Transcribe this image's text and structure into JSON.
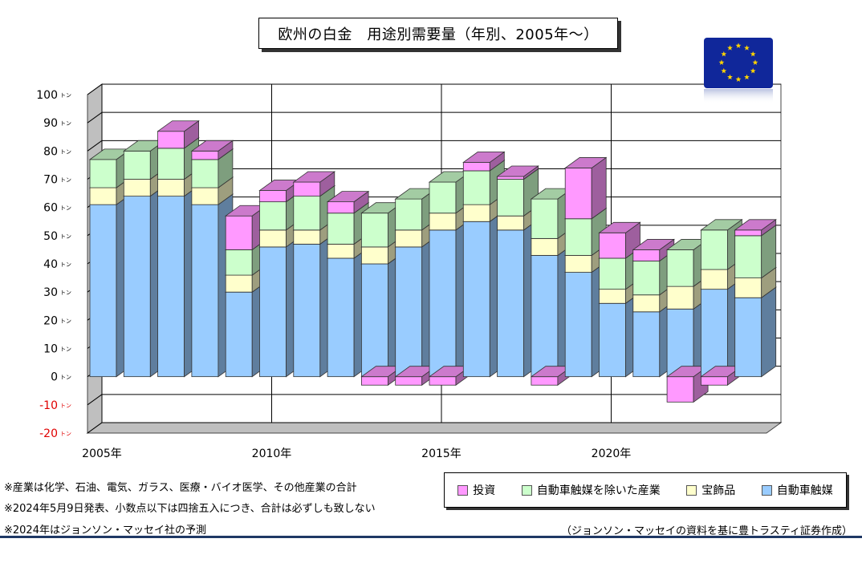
{
  "title": "欧州の白金　用途別需要量（年別、2005年〜）",
  "chart_data": {
    "type": "bar",
    "stacked": true,
    "three_d": true,
    "x": [
      2005,
      2006,
      2007,
      2008,
      2009,
      2010,
      2011,
      2012,
      2013,
      2014,
      2015,
      2016,
      2017,
      2018,
      2019,
      2020,
      2021,
      2022,
      2023,
      2024
    ],
    "x_tick_labels": [
      "2005年",
      "2010年",
      "2015年",
      "2020年"
    ],
    "y_ticks": [
      100,
      90,
      80,
      70,
      60,
      50,
      40,
      30,
      20,
      10,
      0,
      -10,
      -20
    ],
    "y_tick_suffix": "トン",
    "ylim": [
      -20,
      100
    ],
    "grid": true,
    "legend_position": "bottom-right",
    "series": [
      {
        "name": "自動車触媒",
        "color": "#99ccff",
        "values": [
          61,
          64,
          64,
          61,
          30,
          46,
          47,
          42,
          40,
          46,
          52,
          55,
          52,
          43,
          37,
          26,
          23,
          24,
          31,
          28
        ]
      },
      {
        "name": "宝飾品",
        "color": "#ffffcc",
        "values": [
          6,
          6,
          6,
          6,
          6,
          6,
          5,
          5,
          6,
          6,
          6,
          6,
          5,
          6,
          6,
          5,
          6,
          8,
          7,
          7
        ]
      },
      {
        "name": "自動車触媒を除いた産業",
        "color": "#ccffcc",
        "values": [
          10,
          10,
          11,
          10,
          9,
          10,
          12,
          11,
          12,
          11,
          11,
          12,
          13,
          14,
          13,
          11,
          12,
          13,
          14,
          15
        ]
      },
      {
        "name": "投資",
        "color": "#ff99ff",
        "values": [
          0,
          0,
          6,
          3,
          12,
          4,
          5,
          4,
          -3,
          -3,
          -3,
          3,
          1,
          -3,
          18,
          9,
          4,
          -9,
          -3,
          2
        ]
      }
    ]
  },
  "notes": [
    "※産業は化学、石油、電気、ガラス、医療・バイオ医学、その他産業の合計",
    "※2024年5月9日発表、小数点以下は四捨五入につき、合計は必ずしも致しない",
    "※2024年はジョンソン・マッセイ社の予測"
  ],
  "source": "（ジョンソン・マッセイの資料を基に豊トラスティ証券作成）",
  "eu_flag_icon": "eu-flag-icon"
}
